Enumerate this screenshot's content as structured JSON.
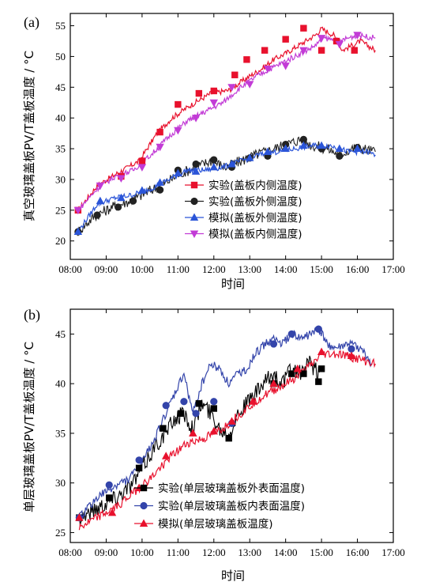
{
  "chart_data": [
    {
      "type": "line",
      "panel_label": "(a)",
      "xlabel": "时间",
      "ylabel": "真空玻璃盖板PV/T盖板温度 / °C",
      "xlim": [
        "08:00",
        "17:00"
      ],
      "ylim": [
        17,
        57
      ],
      "x_ticks": [
        "08:00",
        "09:00",
        "10:00",
        "11:00",
        "12:00",
        "13:00",
        "14:00",
        "15:00",
        "16:00",
        "17:00"
      ],
      "y_ticks": [
        20,
        25,
        30,
        35,
        40,
        45,
        50,
        55
      ],
      "legend_position": "lower-right",
      "series": [
        {
          "name": "实验(盖板内侧温度)",
          "color": "#e8112d",
          "marker": "square",
          "x": [
            "08:13",
            "08:45",
            "09:15",
            "09:55",
            "10:25",
            "10:50",
            "11:20",
            "11:55",
            "12:25",
            "12:55",
            "13:20",
            "13:40",
            "14:00",
            "14:25",
            "14:50",
            "15:00",
            "15:20",
            "15:35",
            "16:05",
            "16:30"
          ],
          "values": [
            25.0,
            29.0,
            30.8,
            33.0,
            37.5,
            40.0,
            42.0,
            44.0,
            44.5,
            46.5,
            48.0,
            49.5,
            50.5,
            52.0,
            53.5,
            54.5,
            53.5,
            51.0,
            52.5,
            51.0
          ],
          "marker_x": [
            "08:13",
            "09:25",
            "10:00",
            "10:30",
            "11:00",
            "11:35",
            "12:00",
            "12:35",
            "12:55",
            "13:25",
            "14:00",
            "14:30",
            "15:00",
            "15:25",
            "15:55"
          ],
          "marker_values": [
            25.0,
            30.5,
            33.0,
            37.7,
            42.2,
            44.0,
            44.4,
            47.0,
            49.5,
            51.0,
            52.8,
            54.6,
            51.0,
            52.5,
            51.0
          ]
        },
        {
          "name": "实验(盖板外侧温度)",
          "color": "#222222",
          "marker": "circle",
          "x": [
            "08:13",
            "08:40",
            "09:10",
            "09:40",
            "10:10",
            "10:40",
            "11:05",
            "11:30",
            "11:55",
            "12:20",
            "12:45",
            "13:10",
            "13:40",
            "14:10",
            "14:25",
            "14:45",
            "15:10",
            "15:30",
            "15:50",
            "16:10",
            "16:30"
          ],
          "values": [
            21.5,
            24.0,
            25.5,
            26.5,
            28.0,
            29.5,
            31.0,
            32.0,
            33.0,
            32.0,
            33.0,
            34.0,
            35.0,
            36.0,
            36.5,
            35.5,
            35.0,
            34.0,
            35.0,
            35.0,
            34.5
          ],
          "marker_x": [
            "08:13",
            "08:45",
            "09:20",
            "09:45",
            "10:30",
            "11:00",
            "11:30",
            "12:00",
            "12:30",
            "13:00",
            "13:30",
            "14:00",
            "14:30",
            "15:00",
            "15:30",
            "16:00"
          ],
          "marker_values": [
            21.5,
            24.2,
            25.5,
            26.5,
            28.3,
            31.5,
            32.5,
            33.2,
            32.0,
            33.5,
            33.8,
            35.7,
            36.5,
            35.0,
            33.8,
            35.2
          ]
        },
        {
          "name": "模拟(盖板外侧温度)",
          "color": "#2b55d8",
          "marker": "triangle-up",
          "x": [
            "08:13",
            "08:45",
            "09:15",
            "09:45",
            "10:15",
            "10:45",
            "11:15",
            "11:45",
            "12:15",
            "12:45",
            "13:15",
            "13:45",
            "14:15",
            "14:45",
            "15:15",
            "15:45",
            "16:15",
            "16:30"
          ],
          "values": [
            21.5,
            26.0,
            27.0,
            27.5,
            28.5,
            30.0,
            31.5,
            31.5,
            32.0,
            33.0,
            34.0,
            34.5,
            35.0,
            35.5,
            35.5,
            34.5,
            34.5,
            34.0
          ],
          "marker_x": [
            "08:13",
            "08:50",
            "09:25",
            "10:00",
            "10:30",
            "11:00",
            "11:30",
            "12:00",
            "12:30",
            "13:00",
            "13:30",
            "14:00",
            "14:30",
            "15:00",
            "15:30",
            "16:00"
          ],
          "marker_values": [
            21.5,
            26.5,
            27.0,
            28.2,
            29.5,
            31.0,
            31.3,
            32.0,
            32.5,
            33.5,
            34.5,
            35.0,
            35.5,
            35.5,
            35.0,
            35.0
          ]
        },
        {
          "name": "模拟(盖板内侧温度)",
          "color": "#c23bd6",
          "marker": "triangle-down",
          "x": [
            "08:13",
            "08:45",
            "09:15",
            "09:45",
            "10:15",
            "10:45",
            "11:15",
            "11:45",
            "12:15",
            "12:45",
            "13:15",
            "13:45",
            "14:15",
            "14:45",
            "15:05",
            "15:30",
            "16:00",
            "16:30"
          ],
          "values": [
            25.0,
            28.5,
            30.5,
            31.5,
            34.0,
            37.0,
            39.5,
            41.0,
            42.5,
            45.0,
            47.0,
            48.5,
            50.0,
            51.5,
            53.0,
            52.5,
            53.5,
            53.0
          ],
          "marker_x": [
            "08:13",
            "08:50",
            "09:25",
            "10:00",
            "10:30",
            "11:00",
            "11:30",
            "12:00",
            "12:30",
            "13:00",
            "13:30",
            "14:00",
            "14:30",
            "15:00",
            "15:30",
            "16:00"
          ],
          "marker_values": [
            25.0,
            29.0,
            30.2,
            32.0,
            35.3,
            38.0,
            40.0,
            42.5,
            45.0,
            45.5,
            48.0,
            48.5,
            51.0,
            53.0,
            52.0,
            53.5
          ]
        }
      ]
    },
    {
      "type": "line",
      "panel_label": "(b)",
      "xlabel": "时间",
      "ylabel": "单层玻璃盖板PV/T盖板温度 / °C",
      "xlim": [
        "08:00",
        "17:00"
      ],
      "ylim": [
        24,
        47.5
      ],
      "x_ticks": [
        "08:00",
        "09:00",
        "10:00",
        "11:00",
        "12:00",
        "13:00",
        "14:00",
        "15:00",
        "16:00",
        "17:00"
      ],
      "y_ticks": [
        25,
        30,
        35,
        40,
        45
      ],
      "legend_position": "lower-right",
      "series": [
        {
          "name": "实验(单层玻璃盖板外表面温度)",
          "color": "#000000",
          "marker": "square",
          "x": [
            "08:15",
            "08:45",
            "09:15",
            "09:45",
            "10:05",
            "10:25",
            "10:40",
            "10:55",
            "11:10",
            "11:25",
            "11:40",
            "11:55",
            "12:10",
            "12:25",
            "12:40",
            "12:55",
            "13:10",
            "13:25",
            "13:40",
            "13:55",
            "14:10",
            "14:25",
            "14:40",
            "14:55",
            "15:00"
          ],
          "values": [
            26.5,
            27.5,
            28.5,
            30.0,
            32.0,
            34.0,
            35.0,
            36.5,
            37.0,
            35.5,
            38.0,
            37.0,
            35.5,
            35.0,
            37.0,
            38.0,
            39.0,
            40.0,
            41.0,
            40.0,
            41.5,
            41.0,
            42.0,
            41.0,
            41.5
          ],
          "marker_x": [
            "08:15",
            "09:05",
            "09:55",
            "10:35",
            "11:05",
            "11:35",
            "12:00",
            "12:25",
            "13:40",
            "14:10",
            "14:30",
            "14:55",
            "15:00"
          ],
          "marker_values": [
            26.5,
            28.5,
            31.5,
            35.5,
            37.0,
            38.0,
            37.5,
            34.5,
            40.0,
            41.0,
            41.0,
            40.2,
            41.5
          ]
        },
        {
          "name": "实验(单层玻璃盖板内表面温度)",
          "color": "#3344aa",
          "marker": "circle",
          "x": [
            "08:15",
            "08:45",
            "09:10",
            "09:40",
            "10:00",
            "10:25",
            "10:40",
            "10:55",
            "11:10",
            "11:25",
            "11:40",
            "11:55",
            "12:10",
            "12:25",
            "12:40",
            "12:55",
            "13:10",
            "13:25",
            "13:40",
            "13:55",
            "14:10",
            "14:25",
            "14:40",
            "14:55",
            "15:10",
            "15:25",
            "15:45",
            "16:05",
            "16:25"
          ],
          "values": [
            26.5,
            28.5,
            29.5,
            30.5,
            32.0,
            35.0,
            37.0,
            39.0,
            41.0,
            37.0,
            40.0,
            42.0,
            41.5,
            40.0,
            41.0,
            41.5,
            43.0,
            44.0,
            44.5,
            44.0,
            45.0,
            44.5,
            45.0,
            45.5,
            44.0,
            43.5,
            44.0,
            43.5,
            42.0
          ],
          "marker_x": [
            "08:15",
            "09:05",
            "09:55",
            "10:40",
            "11:10",
            "11:30",
            "12:00",
            "12:30",
            "13:40",
            "14:10",
            "14:55",
            "15:50"
          ],
          "marker_values": [
            26.5,
            29.8,
            32.3,
            37.8,
            38.2,
            37.0,
            38.2,
            36.0,
            44.0,
            45.0,
            45.5,
            43.5
          ]
        },
        {
          "name": "模拟(单层玻璃盖板温度)",
          "color": "#e8112d",
          "marker": "triangle-up",
          "x": [
            "08:15",
            "08:45",
            "09:15",
            "09:45",
            "10:15",
            "10:45",
            "11:15",
            "11:45",
            "12:15",
            "12:45",
            "13:15",
            "13:45",
            "14:15",
            "14:45",
            "15:00",
            "15:30",
            "16:00",
            "16:30"
          ],
          "values": [
            25.5,
            26.5,
            27.5,
            29.0,
            30.5,
            32.5,
            34.0,
            34.5,
            35.5,
            37.0,
            38.5,
            39.5,
            40.5,
            42.0,
            43.0,
            43.0,
            42.5,
            42.0
          ],
          "marker_x": [
            "08:15",
            "09:10",
            "09:55",
            "10:40",
            "11:25",
            "12:00",
            "12:30",
            "13:05",
            "13:40",
            "14:20",
            "15:00",
            "15:50"
          ],
          "marker_values": [
            26.5,
            27.0,
            29.5,
            32.7,
            35.0,
            35.2,
            36.2,
            38.2,
            40.0,
            41.5,
            43.2,
            42.8
          ]
        }
      ]
    }
  ]
}
